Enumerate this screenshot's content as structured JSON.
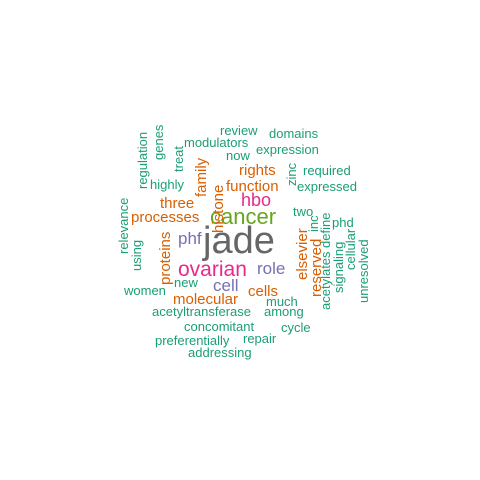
{
  "colors": {
    "teal": "#1b9e77",
    "orange": "#d95f02",
    "purple": "#7570b3",
    "magenta": "#e7298a",
    "green": "#66a61e",
    "gray": "#666666"
  },
  "words": [
    {
      "text": "jade",
      "color": "gray",
      "vertical": false
    },
    {
      "text": "cancer",
      "color": "green",
      "vertical": false
    },
    {
      "text": "ovarian",
      "color": "magenta",
      "vertical": false
    },
    {
      "text": "hbo",
      "color": "magenta",
      "vertical": false
    },
    {
      "text": "phf",
      "color": "purple",
      "vertical": false
    },
    {
      "text": "role",
      "color": "purple",
      "vertical": false
    },
    {
      "text": "cell",
      "color": "purple",
      "vertical": false
    },
    {
      "text": "rights",
      "color": "orange",
      "vertical": false
    },
    {
      "text": "function",
      "color": "orange",
      "vertical": false
    },
    {
      "text": "three",
      "color": "orange",
      "vertical": false
    },
    {
      "text": "processes",
      "color": "orange",
      "vertical": false
    },
    {
      "text": "molecular",
      "color": "orange",
      "vertical": false
    },
    {
      "text": "cells",
      "color": "orange",
      "vertical": false
    },
    {
      "text": "family",
      "color": "orange",
      "vertical": true
    },
    {
      "text": "histone",
      "color": "orange",
      "vertical": true
    },
    {
      "text": "proteins",
      "color": "orange",
      "vertical": true
    },
    {
      "text": "elsevier",
      "color": "orange",
      "vertical": true
    },
    {
      "text": "reserved",
      "color": "orange",
      "vertical": true
    },
    {
      "text": "review",
      "color": "teal",
      "vertical": false
    },
    {
      "text": "domains",
      "color": "teal",
      "vertical": false
    },
    {
      "text": "modulators",
      "color": "teal",
      "vertical": false
    },
    {
      "text": "expression",
      "color": "teal",
      "vertical": false
    },
    {
      "text": "now",
      "color": "teal",
      "vertical": false
    },
    {
      "text": "required",
      "color": "teal",
      "vertical": false
    },
    {
      "text": "expressed",
      "color": "teal",
      "vertical": false
    },
    {
      "text": "highly",
      "color": "teal",
      "vertical": false
    },
    {
      "text": "two",
      "color": "teal",
      "vertical": false
    },
    {
      "text": "phd",
      "color": "teal",
      "vertical": false
    },
    {
      "text": "new",
      "color": "teal",
      "vertical": false
    },
    {
      "text": "women",
      "color": "teal",
      "vertical": false
    },
    {
      "text": "much",
      "color": "teal",
      "vertical": false
    },
    {
      "text": "among",
      "color": "teal",
      "vertical": false
    },
    {
      "text": "acetyltransferase",
      "color": "teal",
      "vertical": false
    },
    {
      "text": "concomitant",
      "color": "teal",
      "vertical": false
    },
    {
      "text": "cycle",
      "color": "teal",
      "vertical": false
    },
    {
      "text": "preferentially",
      "color": "teal",
      "vertical": false
    },
    {
      "text": "repair",
      "color": "teal",
      "vertical": false
    },
    {
      "text": "addressing",
      "color": "teal",
      "vertical": false
    },
    {
      "text": "regulation",
      "color": "teal",
      "vertical": true
    },
    {
      "text": "genes",
      "color": "teal",
      "vertical": true
    },
    {
      "text": "treat",
      "color": "teal",
      "vertical": true
    },
    {
      "text": "zinc",
      "color": "teal",
      "vertical": true
    },
    {
      "text": "relevance",
      "color": "teal",
      "vertical": true
    },
    {
      "text": "using",
      "color": "teal",
      "vertical": true
    },
    {
      "text": "inc",
      "color": "teal",
      "vertical": true
    },
    {
      "text": "acetylates",
      "color": "teal",
      "vertical": true
    },
    {
      "text": "define",
      "color": "teal",
      "vertical": true
    },
    {
      "text": "signaling",
      "color": "teal",
      "vertical": true
    },
    {
      "text": "cellular",
      "color": "teal",
      "vertical": true
    },
    {
      "text": "unresolved",
      "color": "teal",
      "vertical": true
    }
  ]
}
